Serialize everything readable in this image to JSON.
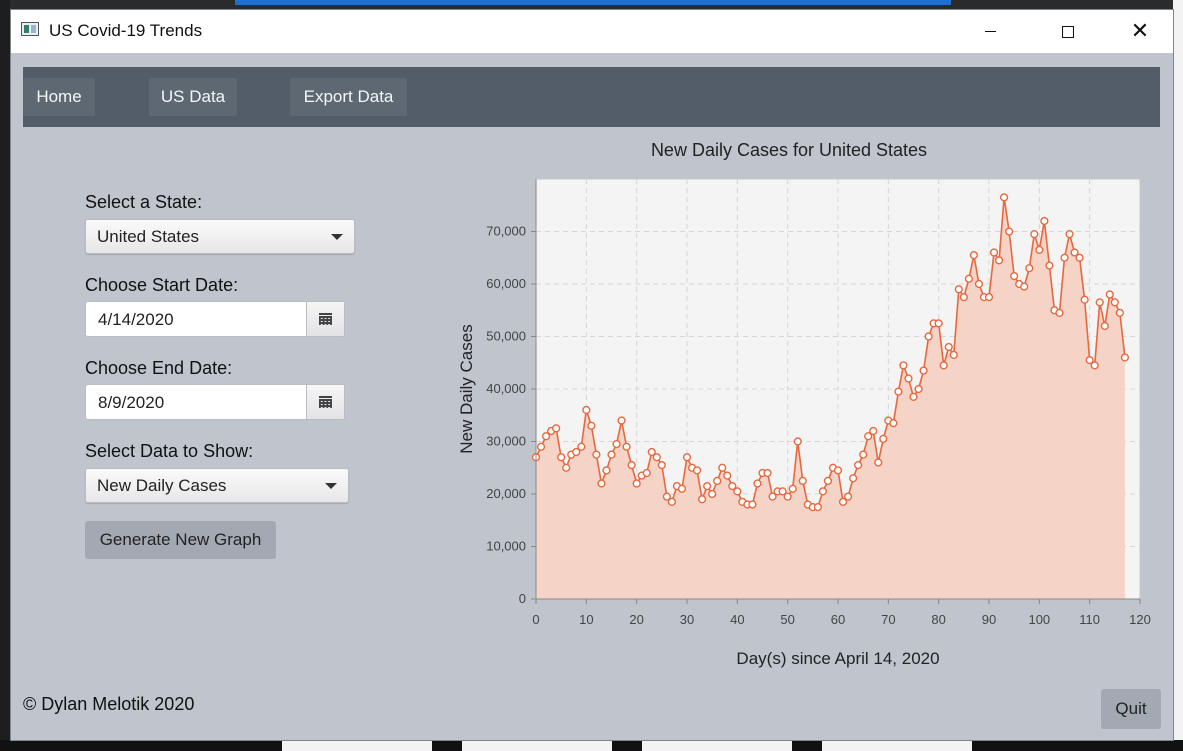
{
  "window": {
    "title": "US Covid-19 Trends"
  },
  "nav": {
    "home": "Home",
    "us_data": "US Data",
    "export": "Export Data"
  },
  "form": {
    "state_label": "Select a State:",
    "state_value": "United States",
    "start_label": "Choose Start Date:",
    "start_value": "4/14/2020",
    "end_label": "Choose End Date:",
    "end_value": "8/9/2020",
    "data_label": "Select Data to Show:",
    "data_value": "New Daily Cases",
    "generate": "Generate New Graph"
  },
  "footer": {
    "copyright": "© Dylan Melotik 2020",
    "quit": "Quit"
  },
  "colors": {
    "line": "#e8683d",
    "fill": "#f5d3c6",
    "plot_bg": "#f4f4f4"
  },
  "chart_data": {
    "type": "area",
    "title": "New Daily Cases for United States",
    "xlabel": "Day(s) since April 14, 2020",
    "ylabel": "New Daily Cases",
    "xlim": [
      0,
      120
    ],
    "ylim": [
      0,
      80000
    ],
    "x_ticks": [
      "0",
      "10",
      "20",
      "30",
      "40",
      "50",
      "60",
      "70",
      "80",
      "90",
      "100",
      "110",
      "120"
    ],
    "y_ticks": [
      "0",
      "10,000",
      "20,000",
      "30,000",
      "40,000",
      "50,000",
      "60,000",
      "70,000"
    ],
    "grid": true,
    "values": [
      27000,
      29000,
      31000,
      32000,
      32500,
      27000,
      25000,
      27500,
      28000,
      29000,
      36000,
      33000,
      27500,
      22000,
      24500,
      27500,
      29500,
      34000,
      29000,
      25500,
      22000,
      23500,
      24000,
      28000,
      27000,
      25500,
      19500,
      18500,
      21500,
      21000,
      27000,
      25000,
      24500,
      19000,
      21500,
      20000,
      22500,
      25000,
      23500,
      21500,
      20500,
      18500,
      18000,
      18000,
      22000,
      24000,
      24000,
      19500,
      20500,
      20500,
      19500,
      21000,
      30000,
      22500,
      18000,
      17500,
      17500,
      20500,
      22500,
      25000,
      24500,
      18500,
      19500,
      23000,
      25500,
      27500,
      31000,
      32000,
      26000,
      30500,
      34000,
      33500,
      39500,
      44500,
      42000,
      38500,
      40000,
      43500,
      50000,
      52500,
      52500,
      44500,
      48000,
      46500,
      59000,
      57500,
      61000,
      65500,
      60000,
      57500,
      57500,
      66000,
      64500,
      76500,
      70000,
      61500,
      60000,
      59500,
      63000,
      69500,
      66500,
      72000,
      63500,
      55000,
      54500,
      65000,
      69500,
      66000,
      65000,
      57000,
      45500,
      44500,
      56500,
      52000,
      58000,
      56500,
      54500,
      46000
    ]
  }
}
